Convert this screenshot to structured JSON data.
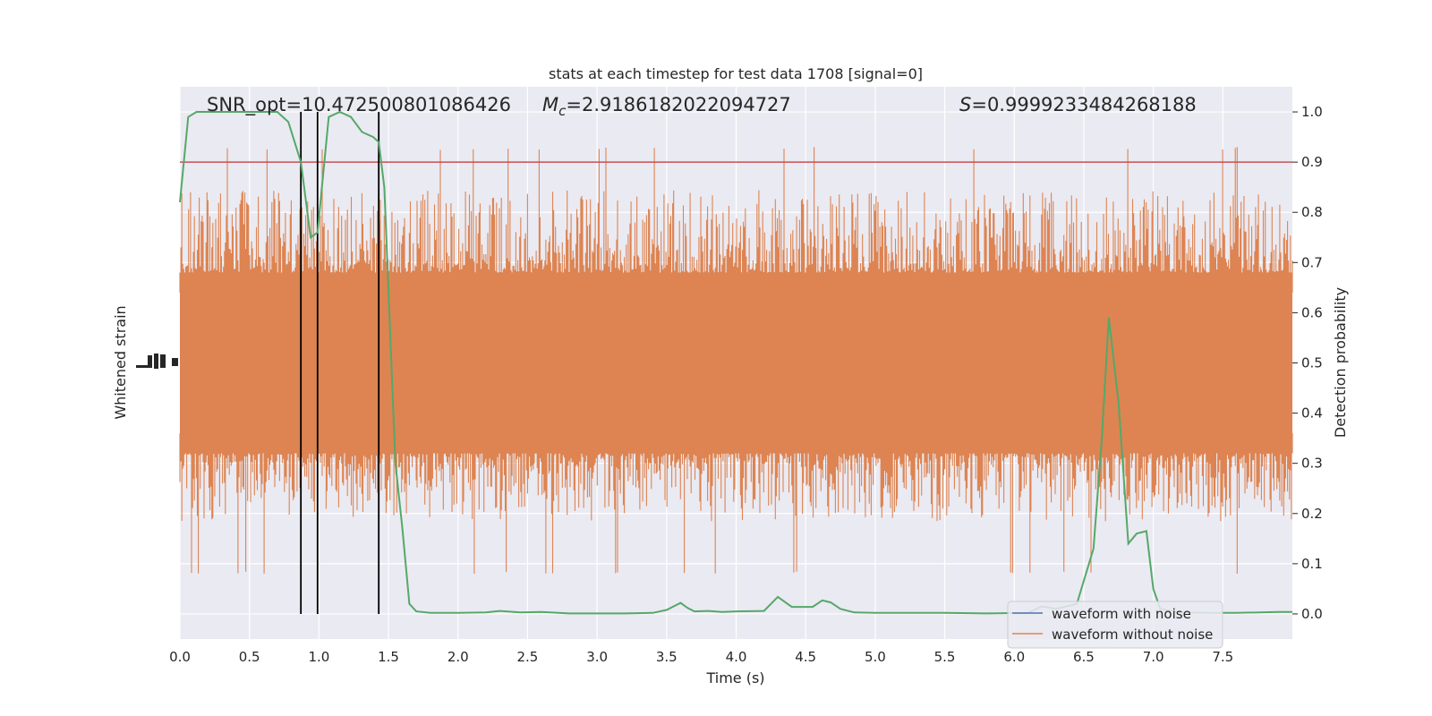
{
  "chart_data": {
    "type": "line",
    "title": "stats at each timestep for test data 1708 [signal=0]",
    "xlabel": "Time (s)",
    "ylabel_left": "Whitened strain",
    "ylabel_right": "Detection probability",
    "xlim": [
      0.0,
      8.0
    ],
    "ylim_right": [
      -0.05,
      1.05
    ],
    "x_ticks": [
      "0.0",
      "0.5",
      "1.0",
      "1.5",
      "2.0",
      "2.5",
      "3.0",
      "3.5",
      "4.0",
      "4.5",
      "5.0",
      "5.5",
      "6.0",
      "6.5",
      "7.0",
      "7.5"
    ],
    "y_ticks_right": [
      "0.0",
      "0.1",
      "0.2",
      "0.3",
      "0.4",
      "0.5",
      "0.6",
      "0.7",
      "0.8",
      "0.9",
      "1.0"
    ],
    "annotations": {
      "snr": "SNR_opt=10.472500801086426",
      "mc_symbol": "M",
      "mc_sub": "c",
      "mc_value": "=2.9186182022094727",
      "s_symbol": "S",
      "s_value": "=0.9999233484268188"
    },
    "threshold": {
      "value": 0.9,
      "color": "#c44e52"
    },
    "vertical_markers": [
      0.87,
      0.99,
      1.43
    ],
    "noise_band": {
      "core_low": 0.36,
      "core_high": 0.64,
      "color": "#dd8452"
    },
    "series": [
      {
        "name": "waveform with noise",
        "color": "#4c72b0"
      },
      {
        "name": "waveform without noise",
        "color": "#dd8452"
      }
    ],
    "detection_probability": {
      "color": "#55a868",
      "x": [
        0.0,
        0.06,
        0.12,
        0.25,
        0.5,
        0.7,
        0.78,
        0.87,
        0.94,
        0.99,
        1.07,
        1.15,
        1.23,
        1.31,
        1.39,
        1.43,
        1.47,
        1.55,
        1.6,
        1.65,
        1.7,
        1.8,
        2.0,
        2.2,
        2.3,
        2.45,
        2.6,
        2.8,
        3.0,
        3.2,
        3.4,
        3.5,
        3.6,
        3.65,
        3.7,
        3.8,
        3.9,
        4.0,
        4.2,
        4.3,
        4.4,
        4.55,
        4.62,
        4.68,
        4.75,
        4.85,
        5.0,
        5.3,
        5.5,
        5.8,
        6.1,
        6.2,
        6.3,
        6.45,
        6.57,
        6.63,
        6.68,
        6.75,
        6.82,
        6.88,
        6.95,
        7.0,
        7.05,
        7.2,
        7.4,
        7.6,
        7.9,
        8.0
      ],
      "y": [
        0.82,
        0.99,
        1.0,
        1.0,
        1.0,
        1.0,
        0.98,
        0.9,
        0.75,
        0.76,
        0.99,
        1.0,
        0.99,
        0.96,
        0.95,
        0.94,
        0.85,
        0.3,
        0.17,
        0.02,
        0.005,
        0.002,
        0.002,
        0.003,
        0.006,
        0.003,
        0.004,
        0.001,
        0.001,
        0.001,
        0.002,
        0.008,
        0.022,
        0.012,
        0.005,
        0.006,
        0.004,
        0.005,
        0.006,
        0.034,
        0.014,
        0.014,
        0.027,
        0.023,
        0.01,
        0.003,
        0.002,
        0.002,
        0.002,
        0.001,
        0.002,
        0.015,
        0.01,
        0.02,
        0.13,
        0.35,
        0.59,
        0.42,
        0.14,
        0.16,
        0.165,
        0.05,
        0.01,
        0.003,
        0.002,
        0.002,
        0.004,
        0.004
      ]
    },
    "legend_position": "lower-right"
  }
}
